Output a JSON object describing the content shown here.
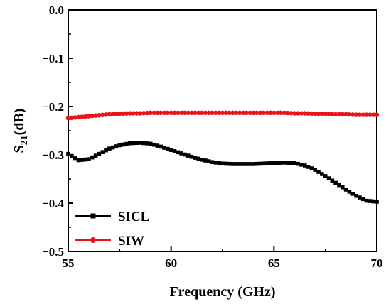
{
  "chart_data": {
    "type": "line",
    "xlabel": "Frequency (GHz)",
    "ylabel_main": "S",
    "ylabel_sub": "21",
    "ylabel_tail": "(dB)",
    "xlim": [
      55,
      70
    ],
    "ylim": [
      -0.5,
      0.0
    ],
    "x_ticks": [
      55,
      60,
      65,
      70
    ],
    "x_tick_labels": [
      "55",
      "60",
      "65",
      "70"
    ],
    "y_ticks": [
      0.0,
      -0.1,
      -0.2,
      -0.3,
      -0.4,
      -0.5
    ],
    "y_tick_labels": [
      "0.0",
      "−0.1",
      "−0.2",
      "−0.3",
      "−0.4",
      "−0.5"
    ],
    "grid": false,
    "legend_position": "bottom-left",
    "series": [
      {
        "name": "SICL",
        "color": "#000000",
        "marker": "square",
        "x": [
          55.0,
          55.5,
          56.0,
          56.5,
          57.0,
          57.5,
          58.0,
          58.5,
          59.0,
          59.5,
          60.0,
          60.5,
          61.0,
          61.5,
          62.0,
          62.5,
          63.0,
          63.5,
          64.0,
          64.5,
          65.0,
          65.5,
          66.0,
          66.5,
          67.0,
          67.5,
          68.0,
          68.5,
          69.0,
          69.5,
          70.0
        ],
        "y": [
          -0.298,
          -0.311,
          -0.309,
          -0.298,
          -0.287,
          -0.28,
          -0.276,
          -0.275,
          -0.277,
          -0.283,
          -0.29,
          -0.297,
          -0.304,
          -0.31,
          -0.315,
          -0.318,
          -0.319,
          -0.319,
          -0.319,
          -0.318,
          -0.317,
          -0.316,
          -0.317,
          -0.322,
          -0.331,
          -0.344,
          -0.358,
          -0.372,
          -0.385,
          -0.395,
          -0.397
        ]
      },
      {
        "name": "SIW",
        "color": "#e8141b",
        "marker": "circle",
        "x": [
          55.0,
          55.5,
          56.0,
          56.5,
          57.0,
          57.5,
          58.0,
          58.5,
          59.0,
          59.5,
          60.0,
          60.5,
          61.0,
          61.5,
          62.0,
          62.5,
          63.0,
          63.5,
          64.0,
          64.5,
          65.0,
          65.5,
          66.0,
          66.5,
          67.0,
          67.5,
          68.0,
          68.5,
          69.0,
          69.5,
          70.0
        ],
        "y": [
          -0.224,
          -0.222,
          -0.22,
          -0.218,
          -0.216,
          -0.215,
          -0.214,
          -0.214,
          -0.213,
          -0.213,
          -0.213,
          -0.213,
          -0.213,
          -0.213,
          -0.213,
          -0.213,
          -0.213,
          -0.213,
          -0.213,
          -0.213,
          -0.213,
          -0.213,
          -0.214,
          -0.214,
          -0.215,
          -0.215,
          -0.216,
          -0.216,
          -0.217,
          -0.217,
          -0.217
        ]
      }
    ]
  }
}
